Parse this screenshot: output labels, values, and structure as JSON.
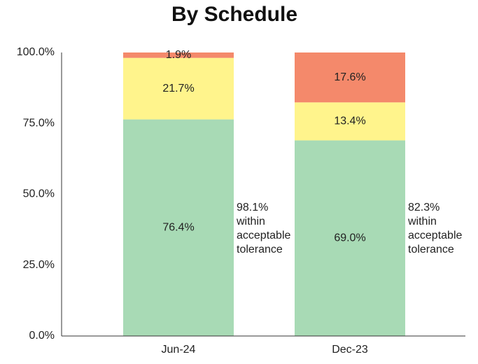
{
  "chart_data": {
    "type": "stacked_bar",
    "title": "By Schedule",
    "categories": [
      "Jun-24",
      "Dec-23"
    ],
    "series": [
      {
        "color": "#a8dab5",
        "values": [
          76.4,
          69.0
        ],
        "value_labels": [
          "76.4%",
          "69.0%"
        ]
      },
      {
        "color": "#fff48c",
        "values": [
          21.7,
          13.4
        ],
        "value_labels": [
          "21.7%",
          "13.4%"
        ]
      },
      {
        "color": "#f4896b",
        "values": [
          1.9,
          17.6
        ],
        "value_labels": [
          "1.9%",
          "17.6%"
        ]
      }
    ],
    "ylim": [
      0,
      100
    ],
    "yticks": [
      {
        "value": 0,
        "label": "0.0%"
      },
      {
        "value": 25,
        "label": "25.0%"
      },
      {
        "value": 50,
        "label": "50.0%"
      },
      {
        "value": 75,
        "label": "75.0%"
      },
      {
        "value": 100,
        "label": "100.0%"
      }
    ],
    "annotations": [
      [
        "98.1%",
        "within",
        "acceptable",
        "tolerance"
      ],
      [
        "82.3%",
        "within",
        "acceptable",
        "tolerance"
      ]
    ]
  }
}
